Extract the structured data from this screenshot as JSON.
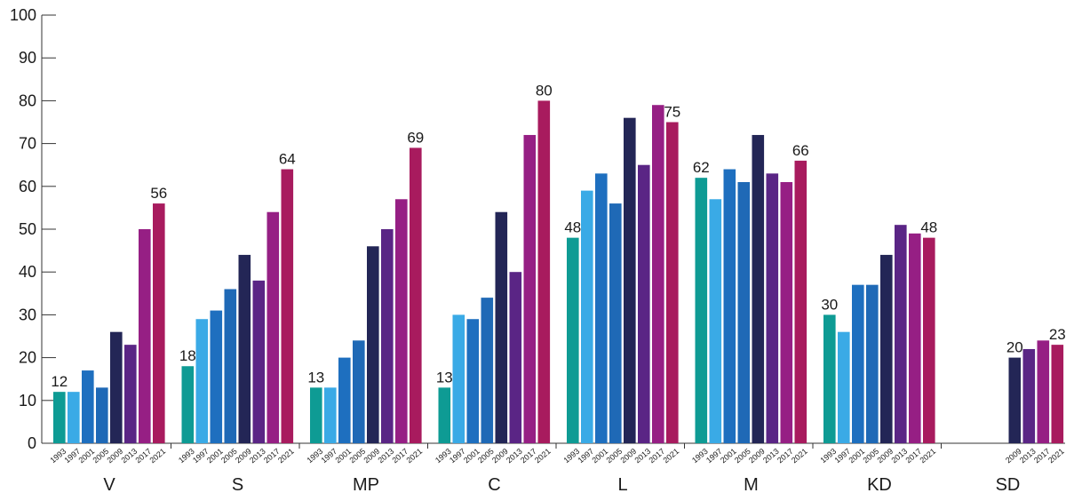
{
  "chart_data": {
    "type": "bar",
    "title": "",
    "xlabel": "",
    "ylabel": "",
    "ylim": [
      0,
      100
    ],
    "yticks": [
      0,
      10,
      20,
      30,
      40,
      50,
      60,
      70,
      80,
      90,
      100
    ],
    "grid": false,
    "legend": "none",
    "years": [
      "1993",
      "1997",
      "2001",
      "2005",
      "2009",
      "2013",
      "2017",
      "2021"
    ],
    "year_colors": {
      "1993": "#0e9b94",
      "1997": "#3aaae6",
      "2001": "#1e6fbf",
      "2005": "#1f69b6",
      "2009": "#232656",
      "2013": "#5a2585",
      "2017": "#961f84",
      "2021": "#a81b5e"
    },
    "groups": [
      {
        "label": "V",
        "bars": [
          {
            "year": "1993",
            "value": 12
          },
          {
            "year": "1997",
            "value": 12
          },
          {
            "year": "2001",
            "value": 17
          },
          {
            "year": "2005",
            "value": 13
          },
          {
            "year": "2009",
            "value": 26
          },
          {
            "year": "2013",
            "value": 23
          },
          {
            "year": "2017",
            "value": 50
          },
          {
            "year": "2021",
            "value": 56
          }
        ]
      },
      {
        "label": "S",
        "bars": [
          {
            "year": "1993",
            "value": 18
          },
          {
            "year": "1997",
            "value": 29
          },
          {
            "year": "2001",
            "value": 31
          },
          {
            "year": "2005",
            "value": 36
          },
          {
            "year": "2009",
            "value": 44
          },
          {
            "year": "2013",
            "value": 38
          },
          {
            "year": "2017",
            "value": 54
          },
          {
            "year": "2021",
            "value": 64
          }
        ]
      },
      {
        "label": "MP",
        "bars": [
          {
            "year": "1993",
            "value": 13
          },
          {
            "year": "1997",
            "value": 13
          },
          {
            "year": "2001",
            "value": 20
          },
          {
            "year": "2005",
            "value": 24
          },
          {
            "year": "2009",
            "value": 46
          },
          {
            "year": "2013",
            "value": 50
          },
          {
            "year": "2017",
            "value": 57
          },
          {
            "year": "2021",
            "value": 69
          }
        ]
      },
      {
        "label": "C",
        "bars": [
          {
            "year": "1993",
            "value": 13
          },
          {
            "year": "1997",
            "value": 30
          },
          {
            "year": "2001",
            "value": 29
          },
          {
            "year": "2005",
            "value": 34
          },
          {
            "year": "2009",
            "value": 54
          },
          {
            "year": "2013",
            "value": 40
          },
          {
            "year": "2017",
            "value": 72
          },
          {
            "year": "2021",
            "value": 80
          }
        ]
      },
      {
        "label": "L",
        "bars": [
          {
            "year": "1993",
            "value": 48
          },
          {
            "year": "1997",
            "value": 59
          },
          {
            "year": "2001",
            "value": 63
          },
          {
            "year": "2005",
            "value": 56
          },
          {
            "year": "2009",
            "value": 76
          },
          {
            "year": "2013",
            "value": 65
          },
          {
            "year": "2017",
            "value": 79
          },
          {
            "year": "2021",
            "value": 75
          }
        ]
      },
      {
        "label": "M",
        "bars": [
          {
            "year": "1993",
            "value": 62
          },
          {
            "year": "1997",
            "value": 57
          },
          {
            "year": "2001",
            "value": 64
          },
          {
            "year": "2005",
            "value": 61
          },
          {
            "year": "2009",
            "value": 72
          },
          {
            "year": "2013",
            "value": 63
          },
          {
            "year": "2017",
            "value": 61
          },
          {
            "year": "2021",
            "value": 66
          }
        ]
      },
      {
        "label": "KD",
        "bars": [
          {
            "year": "1993",
            "value": 30
          },
          {
            "year": "1997",
            "value": 26
          },
          {
            "year": "2001",
            "value": 37
          },
          {
            "year": "2005",
            "value": 37
          },
          {
            "year": "2009",
            "value": 44
          },
          {
            "year": "2013",
            "value": 51
          },
          {
            "year": "2017",
            "value": 49
          },
          {
            "year": "2021",
            "value": 48
          }
        ]
      },
      {
        "label": "SD",
        "bars": [
          {
            "year": "2009",
            "value": 20
          },
          {
            "year": "2013",
            "value": 22
          },
          {
            "year": "2017",
            "value": 24
          },
          {
            "year": "2021",
            "value": 23
          }
        ]
      }
    ],
    "labeled_years": [
      "1993",
      "2021"
    ]
  }
}
